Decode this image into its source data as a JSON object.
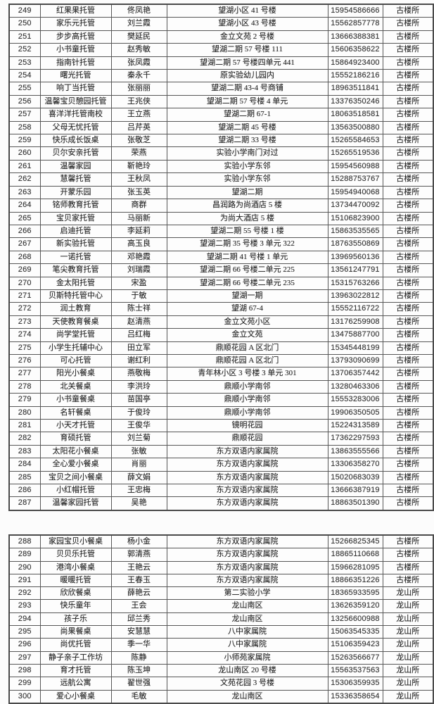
{
  "meta": {
    "ink_color": "#2b2b2b",
    "grid_color": "#575757",
    "paper_color": "#fcfcfc"
  },
  "columns": [
    {
      "key": "no",
      "cell_name": "row-number-cell"
    },
    {
      "key": "name",
      "cell_name": "facility-name-cell"
    },
    {
      "key": "contact",
      "cell_name": "contact-person-cell"
    },
    {
      "key": "address",
      "cell_name": "address-cell"
    },
    {
      "key": "phone",
      "cell_name": "phone-number-cell"
    },
    {
      "key": "office",
      "cell_name": "district-office-cell"
    }
  ],
  "tables": [
    {
      "rows": [
        {
          "no": "249",
          "name": "红果果托管",
          "contact": "佟凤艳",
          "address": "望湖小区 41 号楼",
          "phone": "15954586666",
          "office": "古楼所"
        },
        {
          "no": "250",
          "name": "家乐元托管",
          "contact": "刘兰霞",
          "address": "望湖小区 43 号楼",
          "phone": "15562857778",
          "office": "古楼所"
        },
        {
          "no": "251",
          "name": "步步高托管",
          "contact": "樊延民",
          "address": "金立文苑 2 号楼",
          "phone": "13666388381",
          "office": "古楼所"
        },
        {
          "no": "252",
          "name": "小书童托管",
          "contact": "赵秀敏",
          "address": "望湖二期 57 号楼 111",
          "phone": "15606358622",
          "office": "古楼所"
        },
        {
          "no": "253",
          "name": "指南针托管",
          "contact": "张凤霞",
          "address": "望湖二期 57 号楼四单元 441",
          "phone": "15864923400",
          "office": "古楼所"
        },
        {
          "no": "254",
          "name": "曙光托管",
          "contact": "秦永千",
          "address": "原实验幼儿园内",
          "phone": "15552186216",
          "office": "古楼所"
        },
        {
          "no": "255",
          "name": "响丁当托管",
          "contact": "张丽丽",
          "address": "望湖二期 43-4 号商铺",
          "phone": "18963511841",
          "office": "古楼所"
        },
        {
          "no": "256",
          "name": "温馨宝贝憩园托管",
          "contact": "王兆侠",
          "address": "望湖二期 57 号楼 4 单元",
          "phone": "13376350246",
          "office": "古楼所"
        },
        {
          "no": "257",
          "name": "喜洋洋托管南校",
          "contact": "王立燕",
          "address": "望湖二期 67-1",
          "phone": "18063518581",
          "office": "古楼所"
        },
        {
          "no": "258",
          "name": "父母无忧托管",
          "contact": "吕芹英",
          "address": "望湖二期 45 号楼",
          "phone": "13563500880",
          "office": "古楼所"
        },
        {
          "no": "259",
          "name": "快乐成长饭桌",
          "contact": "张敬芝",
          "address": "望湖二期 33 号楼",
          "phone": "15265584653",
          "office": "古楼所"
        },
        {
          "no": "260",
          "name": "贝尔安亲托管",
          "contact": "荣燕",
          "address": "实验小学南门对过",
          "phone": "15265519536",
          "office": "古楼所"
        },
        {
          "no": "261",
          "name": "温馨家园",
          "contact": "靳艳玲",
          "address": "实验小学东邻",
          "phone": "15954560988",
          "office": "古楼所"
        },
        {
          "no": "262",
          "name": "慧馨托管",
          "contact": "王秋凤",
          "address": "实验小学东邻",
          "phone": "15288753767",
          "office": "古楼所"
        },
        {
          "no": "263",
          "name": "开蒙乐园",
          "contact": "张玉英",
          "address": "望湖二期",
          "phone": "15954940068",
          "office": "古楼所"
        },
        {
          "no": "264",
          "name": "铭师教育托管",
          "contact": "商群",
          "address": "昌润路为尚酒店 5 楼",
          "phone": "13734470092",
          "office": "古楼所"
        },
        {
          "no": "265",
          "name": "宝贝家托管",
          "contact": "马丽新",
          "address": "为尚大酒店 5 楼",
          "phone": "15106823900",
          "office": "古楼所"
        },
        {
          "no": "266",
          "name": "启迪托管",
          "contact": "李延莉",
          "address": "望湖二期 55 号楼 1 楼",
          "phone": "15863535565",
          "office": "古楼所"
        },
        {
          "no": "267",
          "name": "新实验托管",
          "contact": "高玉良",
          "address": "望湖二期 35 号楼 3 单元 322",
          "phone": "18763550869",
          "office": "古楼所"
        },
        {
          "no": "268",
          "name": "一诺托管",
          "contact": "邓艳霞",
          "address": "望湖二期 41 号楼 1 单元",
          "phone": "13969560136",
          "office": "古楼所"
        },
        {
          "no": "269",
          "name": "笔尖教育托管",
          "contact": "刘瑞霞",
          "address": "望湖二期 66 号楼二单元 225",
          "phone": "13561247791",
          "office": "古楼所"
        },
        {
          "no": "270",
          "name": "金太阳托管",
          "contact": "宋盈",
          "address": "望湖二期 66 号楼二单元 235",
          "phone": "15315763266",
          "office": "古楼所"
        },
        {
          "no": "271",
          "name": "贝斯特托管中心",
          "contact": "于敏",
          "address": "望湖一期",
          "phone": "13963022812",
          "office": "古楼所"
        },
        {
          "no": "272",
          "name": "润土教育",
          "contact": "陈士祥",
          "address": "望湖 67-4",
          "phone": "15552116722",
          "office": "古楼所"
        },
        {
          "no": "273",
          "name": "天使教育餐桌",
          "contact": "赵清燕",
          "address": "金立文苑小区",
          "phone": "13176259908",
          "office": "古楼所"
        },
        {
          "no": "274",
          "name": "尚学堂托管",
          "contact": "吕红梅",
          "address": "金立文苑",
          "phone": "13475887700",
          "office": "古楼所"
        },
        {
          "no": "275",
          "name": "小学生托辅中心",
          "contact": "田立军",
          "address": "鼎顺花园 A 区北门",
          "phone": "15345448199",
          "office": "古楼所"
        },
        {
          "no": "276",
          "name": "可心托管",
          "contact": "谢红利",
          "address": "鼎顺花园 A 区北门",
          "phone": "13793090699",
          "office": "古楼所"
        },
        {
          "no": "277",
          "name": "阳光小餐桌",
          "contact": "燕敬梅",
          "address": "青年林小区 3 号楼 3 单元 301",
          "phone": "13706357442",
          "office": "古楼所"
        },
        {
          "no": "278",
          "name": "北关餐桌",
          "contact": "李洪玲",
          "address": "鼎顺小学南邻",
          "phone": "13280463306",
          "office": "古楼所"
        },
        {
          "no": "279",
          "name": "小书童餐桌",
          "contact": "苗国亭",
          "address": "鼎顺小学南邻",
          "phone": "15553283006",
          "office": "古楼所"
        },
        {
          "no": "280",
          "name": "名轩餐桌",
          "contact": "于俊玲",
          "address": "鼎顺小学南邻",
          "phone": "19906350505",
          "office": "古楼所"
        },
        {
          "no": "281",
          "name": "小天才托管",
          "contact": "王俊华",
          "address": "镜明花园",
          "phone": "15224313589",
          "office": "古楼所"
        },
        {
          "no": "282",
          "name": "育硕托管",
          "contact": "刘兰菊",
          "address": "鼎顺花园",
          "phone": "17362297593",
          "office": "古楼所"
        },
        {
          "no": "283",
          "name": "太阳花小餐桌",
          "contact": "张敏",
          "address": "东方双语内家属院",
          "phone": "13863555566",
          "office": "古楼所"
        },
        {
          "no": "284",
          "name": "全心爱小餐桌",
          "contact": "肖丽",
          "address": "东方双语内家属院",
          "phone": "13306358270",
          "office": "古楼所"
        },
        {
          "no": "285",
          "name": "宝贝之间小餐桌",
          "contact": "薛文娟",
          "address": "东方双语内家属院",
          "phone": "15020683039",
          "office": "古楼所"
        },
        {
          "no": "286",
          "name": "小红帽托管",
          "contact": "王忠梅",
          "address": "东方双语内家属院",
          "phone": "13666387919",
          "office": "古楼所"
        },
        {
          "no": "287",
          "name": "温馨家园托管",
          "contact": "吴艳",
          "address": "东方双语内家属院",
          "phone": "18863501390",
          "office": "古楼所"
        }
      ]
    },
    {
      "rows": [
        {
          "no": "288",
          "name": "家园宝贝小餐桌",
          "contact": "杨小金",
          "address": "东方双语内家属院",
          "phone": "15266825345",
          "office": "古楼所"
        },
        {
          "no": "289",
          "name": "贝贝乐托管",
          "contact": "郭清燕",
          "address": "东方双语内家属院",
          "phone": "18865110668",
          "office": "古楼所"
        },
        {
          "no": "290",
          "name": "港湾小餐桌",
          "contact": "王艳云",
          "address": "东方双语内家属院",
          "phone": "15966281095",
          "office": "古楼所"
        },
        {
          "no": "291",
          "name": "暖暖托管",
          "contact": "王春玉",
          "address": "东方双语内家属院",
          "phone": "18866351226",
          "office": "古楼所"
        },
        {
          "no": "292",
          "name": "欣欣餐桌",
          "contact": "薛艳云",
          "address": "第二实验小学",
          "phone": "18365933595",
          "office": "龙山所"
        },
        {
          "no": "293",
          "name": "快乐童年",
          "contact": "王会",
          "address": "龙山南区",
          "phone": "13626359120",
          "office": "龙山所"
        },
        {
          "no": "294",
          "name": "孩子乐",
          "contact": "邱兰秀",
          "address": "龙山南区",
          "phone": "13256600988",
          "office": "龙山所"
        },
        {
          "no": "295",
          "name": "尚果餐桌",
          "contact": "安慧慧",
          "address": "八中家属院",
          "phone": "15063545335",
          "office": "龙山所"
        },
        {
          "no": "296",
          "name": "尚优托管",
          "contact": "季一华",
          "address": "八中家属院",
          "phone": "15106359423",
          "office": "龙山所"
        },
        {
          "no": "297",
          "name": "静子亲子工作坊",
          "contact": "陈静",
          "address": "小师苑家属院",
          "phone": "15263566677",
          "office": "龙山所"
        },
        {
          "no": "298",
          "name": "育才托管",
          "contact": "陈玉坤",
          "address": "龙山南区 20 号楼",
          "phone": "15563537563",
          "office": "龙山所"
        },
        {
          "no": "299",
          "name": "远航公寓",
          "contact": "翟世强",
          "address": "文苑花园 3 号楼",
          "phone": "15306359935",
          "office": "龙山所"
        },
        {
          "no": "300",
          "name": "爱心小餐桌",
          "contact": "毛敏",
          "address": "龙山南区",
          "phone": "15336358654",
          "office": "龙山所"
        }
      ]
    }
  ]
}
